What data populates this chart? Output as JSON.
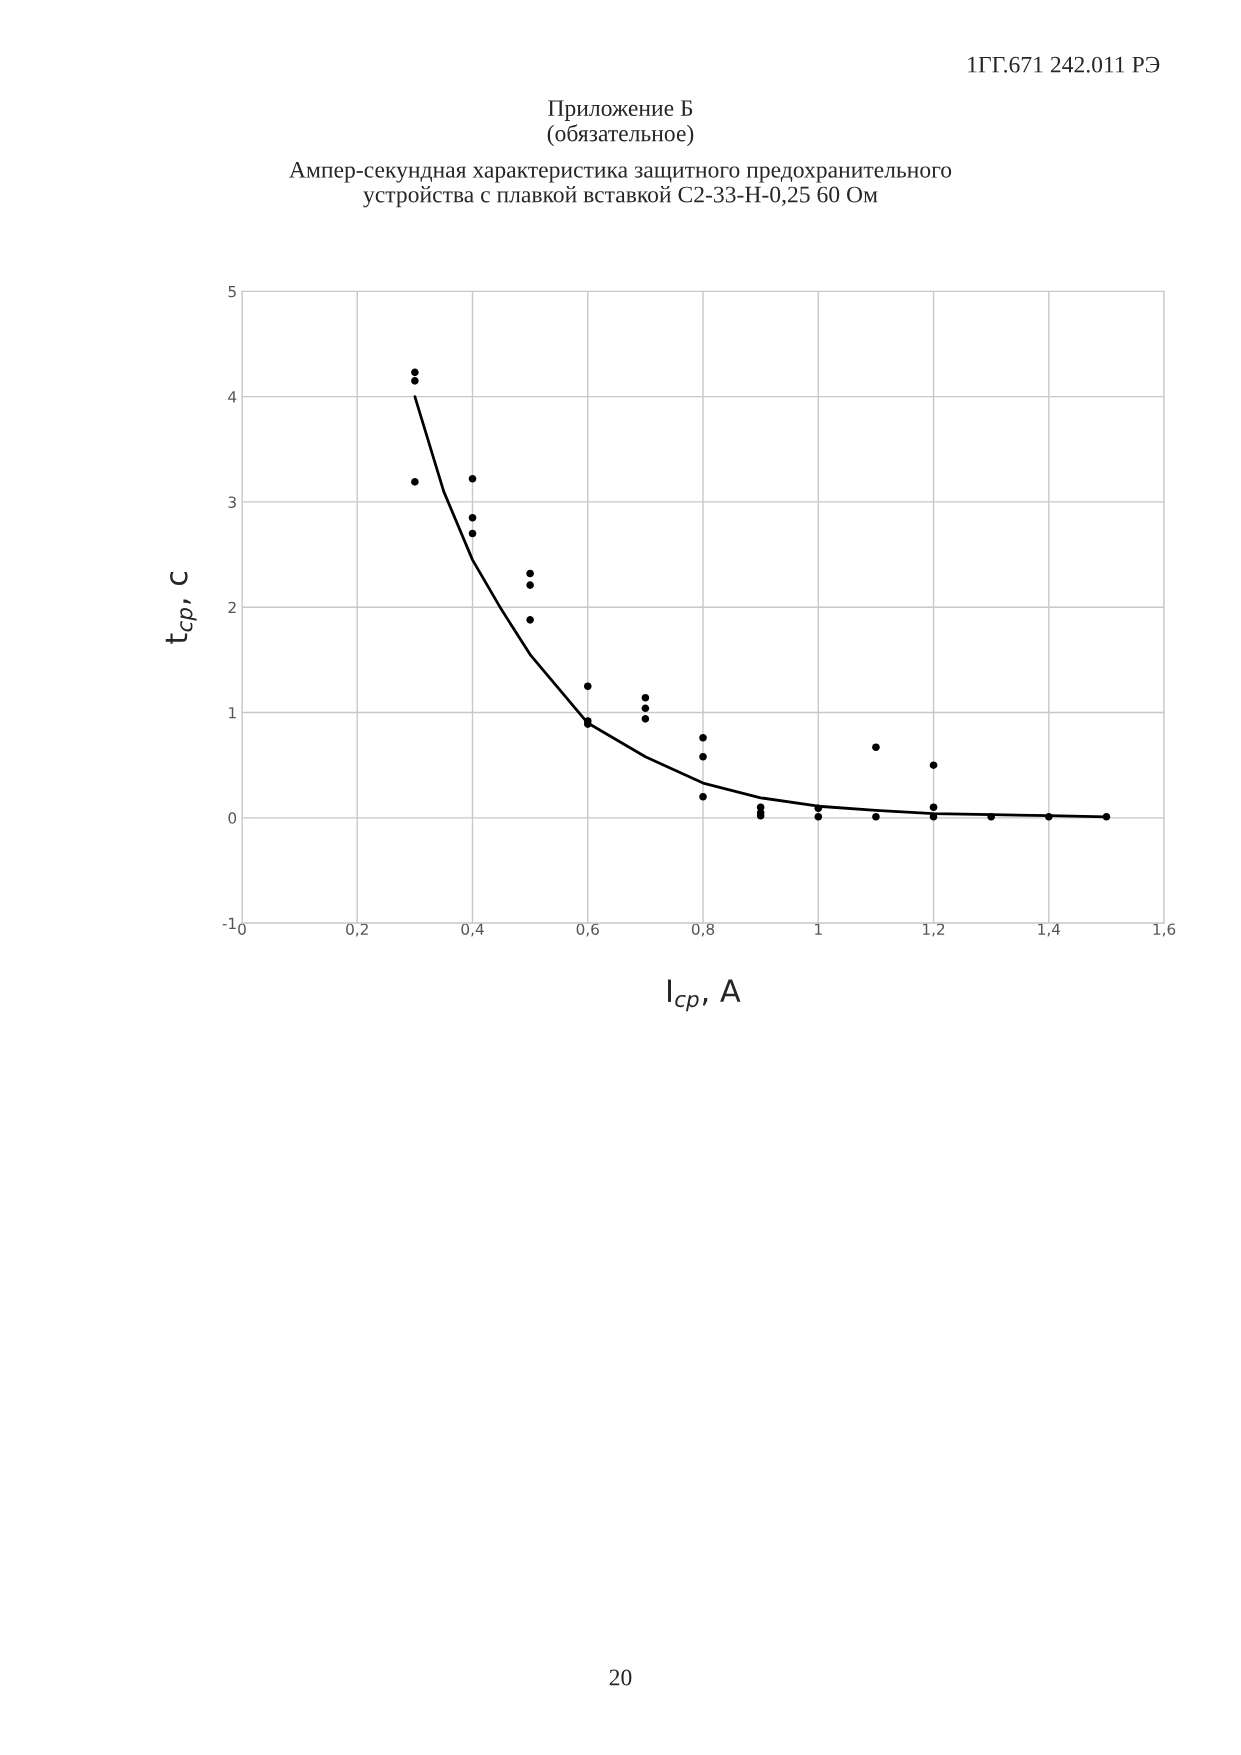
{
  "chart_data": {
    "type": "scatter",
    "title": "Ампер-секундная характеристика защитного предохранительного\nустройства с плавкой вставкой С2-33-Н-0,25 60 Ом",
    "xlabel": "I$_{ср}$, А",
    "ylabel": "t$_{ср}$, с",
    "annotations": [
      "1ГГ.671 242.011 РЭ",
      "Приложение Б\n(обязательное)",
      "20"
    ],
    "series": [
      {
        "color": "#000000",
        "marker": "circle",
        "x": [
          0.3,
          0.3,
          0.3,
          0.4,
          0.4,
          0.4,
          0.5,
          0.5,
          0.5,
          0.6,
          0.6,
          0.6,
          0.7,
          0.7,
          0.7,
          0.8,
          0.8,
          0.8,
          0.9,
          0.9,
          0.9,
          1.0,
          1.0,
          1.1,
          1.1,
          1.2,
          1.2,
          1.2,
          1.3,
          1.4,
          1.5
        ],
        "values": [
          4.23,
          4.15,
          3.19,
          3.22,
          2.85,
          2.7,
          2.32,
          2.21,
          1.88,
          1.25,
          0.92,
          0.89,
          1.14,
          1.04,
          0.94,
          0.76,
          0.58,
          0.2,
          0.1,
          0.05,
          0.02,
          0.09,
          0.01,
          0.67,
          0.01,
          0.5,
          0.1,
          0.01,
          0.01,
          0.01,
          0.01
        ]
      },
      {
        "type": "line",
        "color": "#000000",
        "marker": "none",
        "line_style": "solid",
        "x": [
          0.3,
          0.35,
          0.4,
          0.45,
          0.5,
          0.6,
          0.7,
          0.8,
          0.9,
          1.0,
          1.1,
          1.2,
          1.3,
          1.4,
          1.5
        ],
        "values": [
          4.0,
          3.1,
          2.45,
          1.98,
          1.55,
          0.9,
          0.58,
          0.33,
          0.19,
          0.11,
          0.07,
          0.04,
          0.03,
          0.02,
          0.01
        ]
      }
    ],
    "xlim": [
      0,
      1.6
    ],
    "ylim": [
      -1,
      5
    ],
    "xticks": [
      0,
      {
        "value": 0.2,
        "label": "0,2"
      },
      {
        "value": 0.4,
        "label": "0,4"
      },
      {
        "value": 0.6,
        "label": "0,6"
      },
      {
        "value": 0.8,
        "label": "0,8"
      },
      1,
      {
        "value": 1.2,
        "label": "1,2"
      },
      {
        "value": 1.4,
        "label": "1,4"
      },
      {
        "value": 1.6,
        "label": "1,6"
      }
    ],
    "yticks": [
      -1,
      0,
      1,
      2,
      3,
      4,
      5
    ],
    "grid": true,
    "legend": false
  }
}
